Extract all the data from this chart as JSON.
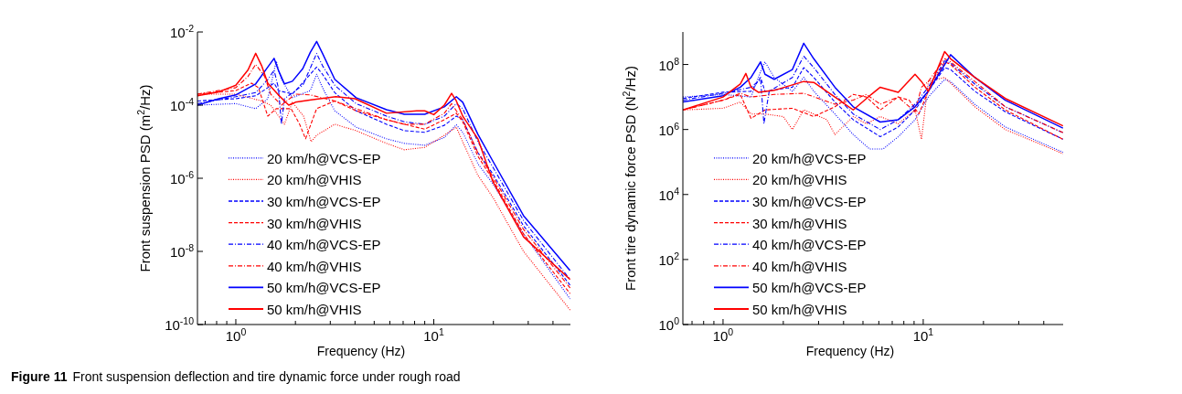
{
  "chart_data": [
    {
      "type": "line",
      "xlabel": "Frequency (Hz)",
      "ylabel": "Front suspension PSD (m$^{2}$/Hz)",
      "log": "xy",
      "legend": "bottom left",
      "grid": false,
      "xlim": [
        0.64,
        49
      ],
      "ylim": [
        1e-10,
        0.01
      ],
      "xticks": [
        {
          "value": 0.7,
          "label": null
        },
        {
          "value": 0.8,
          "label": null
        },
        {
          "value": 0.9,
          "label": null
        },
        {
          "value": 1,
          "label": "10$^{0}$"
        },
        {
          "value": 2,
          "label": null
        },
        {
          "value": 3,
          "label": null
        },
        {
          "value": 4,
          "label": null
        },
        {
          "value": 5,
          "label": null
        },
        {
          "value": 6,
          "label": null
        },
        {
          "value": 7,
          "label": null
        },
        {
          "value": 8,
          "label": null
        },
        {
          "value": 9,
          "label": null
        },
        {
          "value": 10,
          "label": "10$^{1}$"
        },
        {
          "value": 20,
          "label": null
        },
        {
          "value": 30,
          "label": null
        },
        {
          "value": 40,
          "label": null
        }
      ],
      "yticks": [
        {
          "value": 1e-10,
          "label": "10$^{-10}$"
        },
        {
          "value": 1e-08,
          "label": "10$^{-8}$"
        },
        {
          "value": 1e-06,
          "label": "10$^{-6}$"
        },
        {
          "value": 0.0001,
          "label": "10$^{-4}$"
        },
        {
          "value": 0.01,
          "label": "10$^{-2}$"
        }
      ],
      "annotations": [
        "Figure 11",
        "Front suspension deflection and tire dynamic force under rough road"
      ],
      "series": [
        {
          "name": "20 km/h@VCS-EP",
          "color": "#0000ff",
          "line_style": "dotted",
          "x": [
            0.64,
            1.0,
            1.26,
            1.45,
            1.6,
            1.7,
            1.93,
            2.38,
            2.56,
            2.74,
            3.16,
            4.05,
            5.77,
            7.1,
            9,
            11.3,
            13,
            14,
            16.7,
            19.9,
            28.4,
            48.8
          ],
          "values": [
            0.0001,
            0.00011,
            8e-05,
            0.00015,
            0.0016,
            0.0005,
            0.00016,
            0.00025,
            0.0007,
            0.0003,
            7e-05,
            2.5e-05,
            1.2e-05,
            9e-06,
            8e-06,
            1.3e-05,
            2.9e-05,
            1.8e-05,
            2.5e-06,
            7e-07,
            3e-08,
            5e-10
          ]
        },
        {
          "name": "20 km/h@VHIS",
          "color": "#ff0000",
          "line_style": "dotted",
          "x": [
            0.64,
            1.0,
            1.35,
            1.5,
            1.76,
            1.93,
            2.2,
            2.4,
            2.56,
            3.16,
            4.05,
            5.77,
            7.1,
            9,
            11.3,
            13,
            14,
            16.7,
            19.9,
            28.4,
            48.8
          ],
          "values": [
            0.0002,
            0.0002,
            0.00013,
            0.0001,
            3e-05,
            0.00012,
            5e-05,
            1e-05,
            1.5e-05,
            3e-05,
            2e-05,
            9e-06,
            6e-06,
            7e-06,
            1.5e-05,
            2.5e-05,
            1e-05,
            1.2e-06,
            3e-07,
            1e-08,
            2.5e-10
          ]
        },
        {
          "name": "30 km/h@VCS-EP",
          "color": "#0000ff",
          "line_style": "dashed",
          "x": [
            0.64,
            1.0,
            1.26,
            1.45,
            1.56,
            1.64,
            1.93,
            2.38,
            2.56,
            2.74,
            3.16,
            4.05,
            5.77,
            7.1,
            9,
            11.3,
            13,
            14,
            16.7,
            19.9,
            28.4,
            48.8
          ],
          "values": [
            0.00013,
            0.00015,
            0.00018,
            0.0003,
            0.0004,
            0.00025,
            0.0002,
            0.0007,
            0.0011,
            0.0007,
            0.00022,
            7e-05,
            3e-05,
            2e-05,
            1.8e-05,
            2.8e-05,
            5e-05,
            4e-05,
            5e-06,
            1.3e-06,
            5e-08,
            1.2e-09
          ]
        },
        {
          "name": "30 km/h@VHIS",
          "color": "#ff0000",
          "line_style": "dashed",
          "x": [
            0.64,
            1.0,
            1.2,
            1.3,
            1.45,
            1.6,
            1.9,
            2.1,
            2.25,
            2.56,
            3.16,
            4.05,
            5.77,
            7.1,
            9,
            11.3,
            13,
            14,
            16.7,
            19.9,
            28.4,
            48.8
          ],
          "values": [
            0.0002,
            0.00025,
            0.0004,
            0.0003,
            5e-05,
            8e-05,
            8e-05,
            3e-05,
            1.2e-05,
            8e-05,
            0.00013,
            7e-05,
            4e-05,
            3e-05,
            2.2e-05,
            4e-05,
            6e-05,
            3.5e-05,
            4e-06,
            9e-07,
            3e-08,
            7e-10
          ]
        },
        {
          "name": "40 km/h@VCS-EP",
          "color": "#0000ff",
          "line_style": "dashdot",
          "x": [
            0.64,
            1.0,
            1.26,
            1.45,
            1.56,
            1.64,
            1.7,
            1.76,
            2.18,
            2.56,
            2.74,
            3.16,
            4.05,
            5.77,
            7.1,
            9,
            11.3,
            13,
            14,
            16.7,
            19.9,
            28.4,
            48.8
          ],
          "values": [
            0.00011,
            0.00017,
            0.00022,
            0.0005,
            0.0009,
            0.0003,
            3e-05,
            0.00015,
            0.00035,
            0.0026,
            0.0012,
            0.00035,
            0.00011,
            5e-05,
            3.5e-05,
            3e-05,
            5e-05,
            0.00011,
            8e-05,
            1e-05,
            2e-06,
            7e-08,
            1.7e-09
          ]
        },
        {
          "name": "40 km/h@VHIS",
          "color": "#ff0000",
          "line_style": "dashdot",
          "x": [
            0.64,
            1.0,
            1.15,
            1.26,
            1.4,
            1.5,
            1.7,
            2.0,
            2.38,
            3.16,
            4.05,
            5.77,
            7.1,
            9,
            11.3,
            12.3,
            13,
            14,
            16.7,
            19.9,
            28.4,
            48.8
          ],
          "values": [
            0.0002,
            0.0003,
            0.0006,
            0.0013,
            0.0006,
            0.0002,
            0.0001,
            0.0002,
            0.00019,
            0.00013,
            8e-05,
            4e-05,
            3e-05,
            3e-05,
            6e-05,
            0.00011,
            7e-05,
            4e-05,
            5e-06,
            1.1e-06,
            4e-08,
            1e-09
          ]
        },
        {
          "name": "50 km/h@VCS-EP",
          "color": "#0000ff",
          "line_style": "solid",
          "x": [
            0.64,
            0.82,
            1.0,
            1.26,
            1.45,
            1.56,
            1.64,
            1.76,
            1.93,
            2.18,
            2.38,
            2.56,
            2.74,
            3.16,
            4.05,
            5.77,
            7.1,
            9,
            11.3,
            13,
            14,
            16.7,
            19.9,
            28.4,
            48.8
          ],
          "values": [
            0.0001,
            0.00015,
            0.00019,
            0.00038,
            0.0011,
            0.0019,
            0.0009,
            0.00038,
            0.00045,
            0.001,
            0.0028,
            0.0055,
            0.0026,
            0.00051,
            0.00016,
            7.5e-05,
            5.6e-05,
            5.6e-05,
            9e-05,
            0.00017,
            0.00012,
            1.6e-05,
            2.9e-06,
            9.5e-08,
            3e-09
          ]
        },
        {
          "name": "50 km/h@VHIS",
          "color": "#ff0000",
          "line_style": "solid",
          "x": [
            0.64,
            0.82,
            1.0,
            1.15,
            1.26,
            1.35,
            1.45,
            1.64,
            1.85,
            2.0,
            2.4,
            3.2,
            4.0,
            5.77,
            8.2,
            9,
            10,
            11.3,
            12.3,
            13,
            14,
            16.7,
            19.9,
            28.4,
            48.8
          ],
          "values": [
            0.00018,
            0.00023,
            0.00035,
            0.0009,
            0.0026,
            0.0012,
            0.0004,
            0.00019,
            0.0001,
            0.00012,
            0.00014,
            0.00017,
            0.00015,
            6e-05,
            7e-05,
            7e-05,
            5.5e-05,
            0.0001,
            0.00021,
            0.00013,
            5e-05,
            1.2e-05,
            8e-07,
            2.5e-08,
            1.7e-09
          ]
        }
      ]
    },
    {
      "type": "line",
      "xlabel": "Frequency (Hz)",
      "ylabel": "Front tire dynamic force PSD (N$^{2}$/Hz)",
      "log": "xy",
      "legend": "bottom left",
      "grid": false,
      "xlim": [
        0.63,
        50
      ],
      "ylim": [
        1,
        1000000000.0
      ],
      "xticks": [
        {
          "value": 0.7,
          "label": null
        },
        {
          "value": 0.8,
          "label": null
        },
        {
          "value": 0.9,
          "label": null
        },
        {
          "value": 1,
          "label": "10$^{0}$"
        },
        {
          "value": 2,
          "label": null
        },
        {
          "value": 3,
          "label": null
        },
        {
          "value": 4,
          "label": null
        },
        {
          "value": 5,
          "label": null
        },
        {
          "value": 6,
          "label": null
        },
        {
          "value": 7,
          "label": null
        },
        {
          "value": 8,
          "label": null
        },
        {
          "value": 9,
          "label": null
        },
        {
          "value": 10,
          "label": "10$^{1}$"
        },
        {
          "value": 20,
          "label": null
        },
        {
          "value": 30,
          "label": null
        },
        {
          "value": 40,
          "label": null
        }
      ],
      "yticks": [
        {
          "value": 1,
          "label": "10$^{0}$"
        },
        {
          "value": 100,
          "label": "10$^{2}$"
        },
        {
          "value": 10000,
          "label": "10$^{4}$"
        },
        {
          "value": 1000000,
          "label": "10$^{6}$"
        },
        {
          "value": 100000000,
          "label": "10$^{8}$"
        }
      ],
      "series": [
        {
          "name": "20 km/h@VCS-EP",
          "color": "#0000ff",
          "line_style": "dotted",
          "x": [
            0.63,
            1,
            1.38,
            1.54,
            1.62,
            1.8,
            2.22,
            2.53,
            2.84,
            3.62,
            4.47,
            5.4,
            6.3,
            7.5,
            9.1,
            10.6,
            12.8,
            13.7,
            18.1,
            25.7,
            49.9
          ],
          "values": [
            10000000.0,
            12000000.0,
            10000000.0,
            60000000.0,
            120000000.0,
            40000000.0,
            15000000.0,
            40000000.0,
            15000000.0,
            3000000.0,
            700000.0,
            250000.0,
            250000.0,
            600000.0,
            2000000.0,
            10000000.0,
            35000000.0,
            30000000.0,
            6000000.0,
            1200000.0,
            200000.0
          ]
        },
        {
          "name": "20 km/h@VHIS",
          "color": "#ff0000",
          "line_style": "dotted",
          "x": [
            0.63,
            1,
            1.22,
            1.38,
            1.62,
            2.0,
            2.22,
            2.53,
            2.84,
            3.3,
            3.62,
            4.47,
            5.2,
            6.1,
            7.5,
            9.1,
            9.8,
            10.6,
            12.8,
            18.1,
            25.7,
            49.9
          ],
          "values": [
            4000000.0,
            4500000.0,
            7000000.0,
            3000000.0,
            3000000.0,
            2500000.0,
            1000000.0,
            4000000.0,
            3000000.0,
            2000000.0,
            700000.0,
            2500000.0,
            1500000.0,
            2500000.0,
            1500000.0,
            4000000.0,
            500000.0,
            30000000.0,
            40000000.0,
            5000000.0,
            1000000.0,
            180000.0
          ]
        },
        {
          "name": "30 km/h@VCS-EP",
          "color": "#0000ff",
          "line_style": "dashed",
          "x": [
            0.63,
            1,
            1.38,
            1.54,
            1.62,
            2.22,
            2.53,
            2.84,
            3.62,
            4.47,
            6.1,
            7.5,
            9.1,
            10.6,
            12.8,
            13.7,
            18.1,
            25.7,
            49.9
          ],
          "values": [
            9000000.0,
            14000000.0,
            15000000.0,
            40000000.0,
            15000000.0,
            20000000.0,
            80000000.0,
            40000000.0,
            7000000.0,
            2000000.0,
            600000.0,
            1200000.0,
            4000000.0,
            15000000.0,
            80000000.0,
            70000000.0,
            15000000.0,
            3500000.0,
            500000.0
          ]
        },
        {
          "name": "30 km/h@VHIS",
          "color": "#ff0000",
          "line_style": "dashed",
          "x": [
            0.63,
            1,
            1.22,
            1.3,
            1.38,
            1.62,
            2.22,
            2.84,
            3.62,
            4.47,
            5.2,
            6.1,
            7.5,
            8.5,
            9.5,
            10.6,
            12.8,
            13.7,
            18.1,
            25.7,
            49.9
          ],
          "values": [
            4000000.0,
            8000000.0,
            12000000.0,
            5000000.0,
            2200000.0,
            4000000.0,
            4500000.0,
            2500000.0,
            5000000.0,
            12000000.0,
            10000000.0,
            4000000.0,
            10000000.0,
            8000000.0,
            3000000.0,
            15000000.0,
            120000000.0,
            100000000.0,
            20000000.0,
            4000000.0,
            500000.0
          ]
        },
        {
          "name": "40 km/h@VCS-EP",
          "color": "#0000ff",
          "line_style": "dashdot",
          "x": [
            0.63,
            1,
            1.38,
            1.54,
            1.6,
            1.7,
            2.22,
            2.53,
            2.84,
            3.62,
            4.47,
            6.1,
            7.5,
            9.1,
            10.6,
            12.8,
            13.7,
            18.1,
            25.7,
            49.9
          ],
          "values": [
            8000000.0,
            13000000.0,
            20000000.0,
            35000000.0,
            1500000.0,
            15000000.0,
            40000000.0,
            180000000.0,
            80000000.0,
            12000000.0,
            3000000.0,
            1000000.0,
            2000000.0,
            6000000.0,
            20000000.0,
            130000000.0,
            110000000.0,
            25000000.0,
            5000000.0,
            800000.0
          ]
        },
        {
          "name": "40 km/h@VHIS",
          "color": "#ff0000",
          "line_style": "dashdot",
          "x": [
            0.63,
            1,
            1.22,
            1.38,
            1.8,
            2.53,
            3.62,
            4.47,
            5.2,
            6.1,
            7.5,
            9.1,
            9.8,
            10.6,
            12.8,
            13.7,
            18.1,
            25.7,
            49.9
          ],
          "values": [
            4000000.0,
            8000000.0,
            13000000.0,
            10000000.0,
            12000000.0,
            13000000.0,
            6000000.0,
            8000000.0,
            12000000.0,
            6000000.0,
            10000000.0,
            3500000.0,
            20000000.0,
            30000000.0,
            150000000.0,
            120000000.0,
            30000000.0,
            5000000.0,
            800000.0
          ]
        },
        {
          "name": "50 km/h@VCS-EP",
          "color": "#0000ff",
          "line_style": "solid",
          "x": [
            0.63,
            1,
            1.22,
            1.38,
            1.54,
            1.62,
            1.8,
            2.22,
            2.53,
            2.84,
            3.62,
            4.47,
            6.1,
            7.5,
            9.1,
            10.6,
            12.8,
            13.7,
            18.1,
            25.7,
            49.9
          ],
          "values": [
            7000000.0,
            11000000.0,
            20000000.0,
            40000000.0,
            120000000.0,
            50000000.0,
            35000000.0,
            70000000.0,
            450000000.0,
            150000000.0,
            20000000.0,
            5000000.0,
            1700000.0,
            2000000.0,
            5000000.0,
            15000000.0,
            100000000.0,
            200000000.0,
            40000000.0,
            8000000.0,
            1100000.0
          ]
        },
        {
          "name": "50 km/h@VHIS",
          "color": "#ff0000",
          "line_style": "solid",
          "x": [
            0.63,
            1,
            1.22,
            1.3,
            1.38,
            1.5,
            1.8,
            2.53,
            2.84,
            3.62,
            4.47,
            5.5,
            6.1,
            7.5,
            9.1,
            9.8,
            10.6,
            12.8,
            13.7,
            18.1,
            25.7,
            49.9
          ],
          "values": [
            4000000.0,
            10000000.0,
            25000000.0,
            53000000.0,
            20000000.0,
            14000000.0,
            16000000.0,
            30000000.0,
            28000000.0,
            10000000.0,
            4000000.0,
            12000000.0,
            20000000.0,
            14000000.0,
            50000000.0,
            30000000.0,
            15000000.0,
            250000000.0,
            150000000.0,
            40000000.0,
            9000000.0,
            1300000.0
          ]
        }
      ]
    }
  ]
}
